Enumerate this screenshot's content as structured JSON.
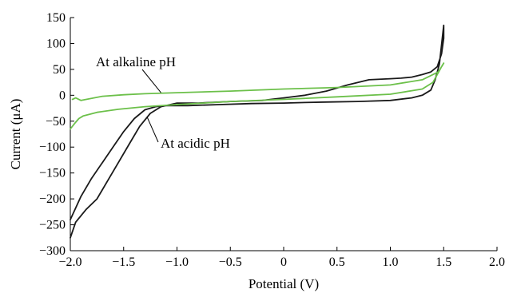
{
  "chart_data": {
    "type": "line",
    "title": "",
    "xlabel": "Potential (V)",
    "ylabel": "Current (μA)",
    "xlim": [
      -2.0,
      2.0
    ],
    "ylim": [
      -300,
      150
    ],
    "xticks": [
      -2.0,
      -1.5,
      -1.0,
      -0.5,
      0,
      0.5,
      1.0,
      1.5,
      2.0
    ],
    "xtick_labels": [
      "−2.0",
      "−1.5",
      "−1.0",
      "−0.5",
      "0",
      "0.5",
      "1.0",
      "1.5",
      "2.0"
    ],
    "yticks": [
      150,
      100,
      50,
      0,
      -50,
      -100,
      -150,
      -200,
      -250,
      -300
    ],
    "ytick_labels": [
      "150",
      "100",
      "50",
      "0",
      "−50",
      "−100",
      "−150",
      "−200",
      "−250",
      "−300"
    ],
    "grid": false,
    "series": [
      {
        "name": "At acidic pH",
        "color": "#1a1a1a",
        "x": [
          -2.0,
          -1.95,
          -1.85,
          -1.75,
          -1.65,
          -1.55,
          -1.45,
          -1.35,
          -1.25,
          -1.15,
          -1.0,
          -0.8,
          -0.5,
          -0.2,
          0.0,
          0.2,
          0.4,
          0.6,
          0.8,
          1.0,
          1.1,
          1.2,
          1.3,
          1.38,
          1.44,
          1.48,
          1.5,
          1.5,
          1.46,
          1.42,
          1.38,
          1.3,
          1.2,
          1.0,
          0.7,
          0.4,
          0.2,
          0.0,
          -0.3,
          -0.6,
          -0.9,
          -1.1,
          -1.2,
          -1.3,
          -1.4,
          -1.5,
          -1.6,
          -1.7,
          -1.8,
          -1.9,
          -2.0
        ],
        "y": [
          -275,
          -245,
          -220,
          -200,
          -165,
          -130,
          -95,
          -60,
          -35,
          -22,
          -15,
          -15,
          -12,
          -10,
          -5,
          0,
          8,
          20,
          30,
          32,
          33,
          35,
          40,
          45,
          55,
          80,
          110,
          135,
          60,
          30,
          10,
          0,
          -5,
          -10,
          -12,
          -13,
          -14,
          -15,
          -16,
          -18,
          -20,
          -20,
          -22,
          -28,
          -45,
          -70,
          -100,
          -130,
          -160,
          -195,
          -240
        ]
      },
      {
        "name": "At alkaline pH",
        "color": "#6cc04a",
        "x": [
          -1.98,
          -1.95,
          -1.9,
          -1.7,
          -1.5,
          -1.3,
          -1.0,
          -0.5,
          0.0,
          0.5,
          1.0,
          1.3,
          1.45,
          1.5,
          1.48,
          1.4,
          1.3,
          1.0,
          0.5,
          0.0,
          -0.5,
          -1.0,
          -1.3,
          -1.55,
          -1.75,
          -1.88,
          -1.92,
          -1.95,
          -2.0
        ],
        "y": [
          -8,
          -5,
          -10,
          -2,
          1,
          3,
          5,
          8,
          12,
          15,
          20,
          30,
          45,
          62,
          55,
          25,
          12,
          2,
          -3,
          -8,
          -12,
          -18,
          -22,
          -27,
          -33,
          -40,
          -45,
          -52,
          -65
        ]
      }
    ],
    "annotations": [
      {
        "text": "At alkaline pH",
        "series": "At alkaline pH",
        "point": [
          -1.15,
          5
        ]
      },
      {
        "text": "At acidic pH",
        "series": "At acidic pH",
        "point": [
          -1.28,
          -42
        ]
      }
    ]
  }
}
